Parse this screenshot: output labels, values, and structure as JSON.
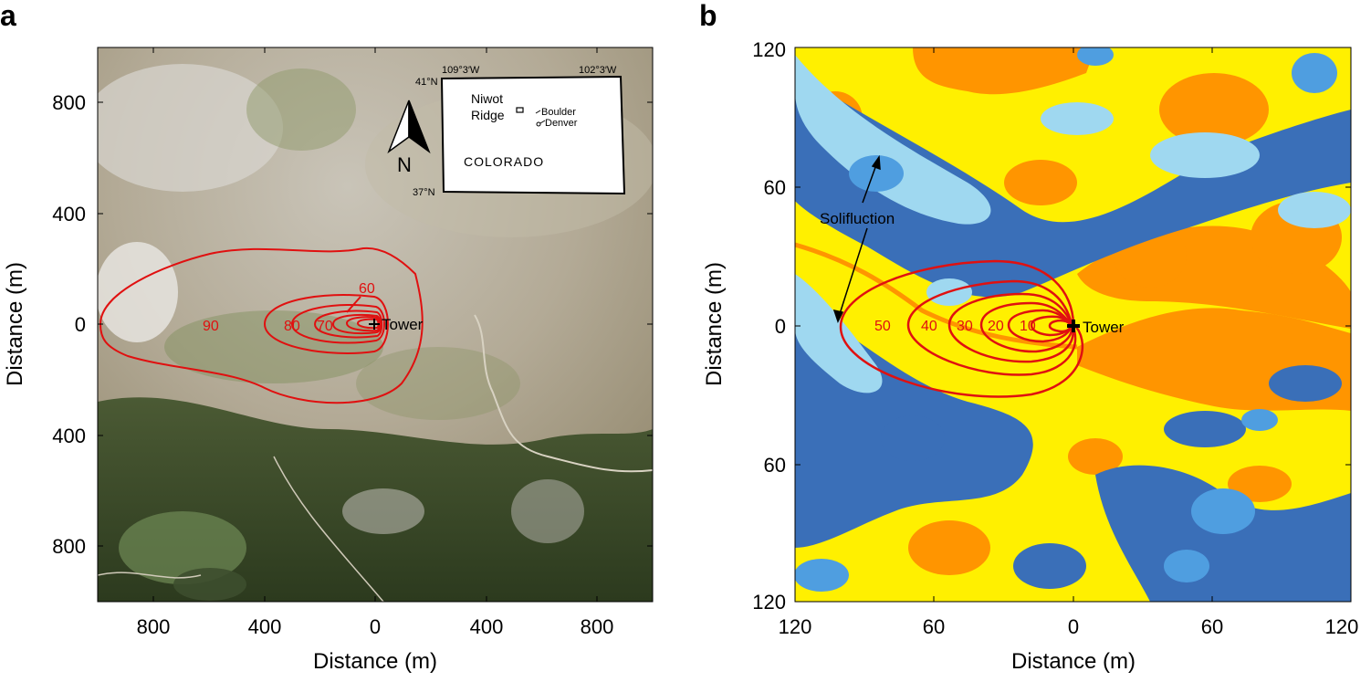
{
  "panel_a": {
    "letter": "a",
    "xlabel": "Distance (m)",
    "ylabel": "Distance (m)",
    "xticks": [
      "800",
      "400",
      "0",
      "400",
      "800"
    ],
    "yticks": [
      "800",
      "400",
      "0",
      "400",
      "800"
    ],
    "tower_label": "Tower",
    "contour_labels": [
      "60",
      "70",
      "80",
      "90"
    ],
    "inset": {
      "lon_left": "109°3′W",
      "lon_right": "102°3′W",
      "lat_top": "41°N",
      "lat_bottom": "37°N",
      "site_label_1": "Niwot",
      "site_label_2": "Ridge",
      "city_1": "Boulder",
      "city_2": "Denver",
      "state": "COLORADO"
    },
    "north_label": "N"
  },
  "panel_b": {
    "letter": "b",
    "xlabel": "Distance (m)",
    "ylabel": "Distance (m)",
    "xticks": [
      "120",
      "60",
      "0",
      "60",
      "120"
    ],
    "yticks": [
      "120",
      "60",
      "0",
      "60",
      "120"
    ],
    "tower_label": "Tower",
    "contour_labels": [
      "10",
      "20",
      "30",
      "40",
      "50"
    ],
    "annotation": "Solifluction"
  },
  "colors": {
    "contour": "#e01010",
    "class_light_blue": "#9fd8f0",
    "class_mid_blue": "#4f9ee0",
    "class_dark_blue": "#3a6fb8",
    "class_yellow": "#fff000",
    "class_orange": "#ff9500"
  }
}
